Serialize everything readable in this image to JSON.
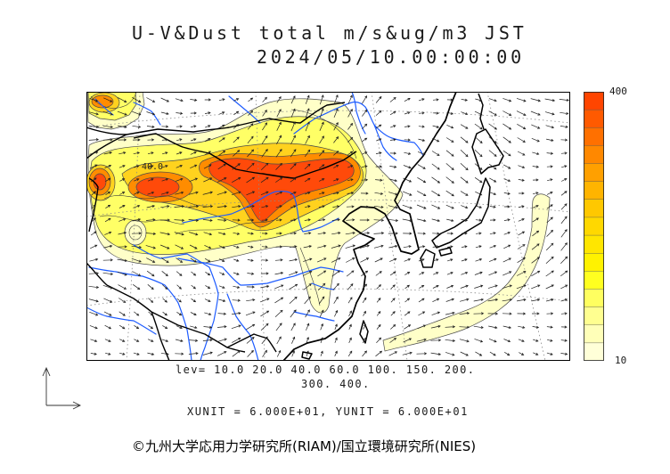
{
  "title": {
    "line1": "U-V&Dust total m/s&ug/m3 JST",
    "line2": "2024/05/10.00:00:00"
  },
  "map": {
    "contour_label": "40.0",
    "fill_colors": {
      "pale": "#ffffc8",
      "yellow": "#ffff66",
      "gold": "#ffd21e",
      "orange": "#ff8c00",
      "red": "#ff4a0a"
    },
    "line_colors": {
      "coastline": "#000000",
      "border": "#000000",
      "river": "#1e5cff",
      "grid": "#8a8a8a",
      "vector": "#1f1f1f",
      "contour": "#3c3c3c"
    }
  },
  "colorbar": {
    "max_label": "400",
    "min_label": "10",
    "colors": [
      "#ff4500",
      "#ff5a00",
      "#ff7000",
      "#ff8800",
      "#ffa000",
      "#ffb400",
      "#ffc800",
      "#ffd800",
      "#ffe600",
      "#fff200",
      "#ffff20",
      "#ffff60",
      "#ffff90",
      "#ffffb8",
      "#ffffd8"
    ]
  },
  "levels": {
    "line1": "lev= 10.0 20.0 40.0 60.0 100. 150. 200.",
    "line2": "300. 400."
  },
  "units": "XUNIT = 6.000E+01, YUNIT = 6.000E+01",
  "copyright": "©九州大学応用力学研究所(RIAM)/国立環境研究所(NIES)"
}
